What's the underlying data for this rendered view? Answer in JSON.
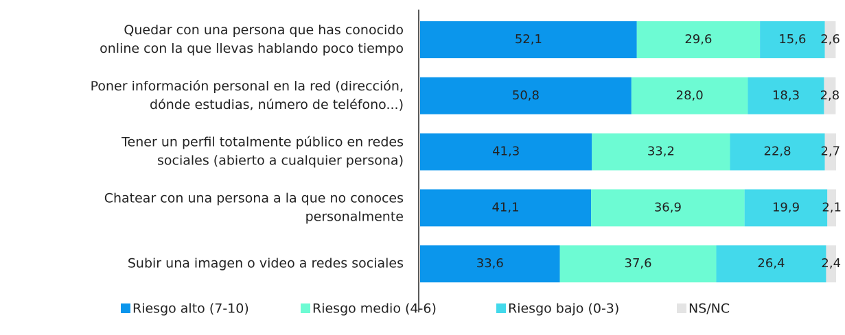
{
  "chart_data": {
    "type": "stacked-barh",
    "categories": [
      [
        "Quedar con una persona que has conocido",
        "online con la que llevas hablando poco tiempo"
      ],
      [
        "Poner información personal en la red (dirección,",
        "dónde estudias, número de teléfono...)"
      ],
      [
        "Tener un perfil totalmente público en redes",
        "sociales (abierto a cualquier persona)"
      ],
      [
        "Chatear con una persona a la que no conoces",
        "personalmente"
      ],
      [
        "Subir una imagen o video a redes sociales"
      ]
    ],
    "series": [
      {
        "name": "Riesgo alto (7-10)",
        "color": "#0b96ec",
        "values": [
          52.1,
          50.8,
          41.3,
          41.1,
          33.6
        ],
        "value_labels": [
          "52,1",
          "50,8",
          "41,3",
          "41,1",
          "33,6"
        ]
      },
      {
        "name": "Riesgo medio (4-6)",
        "color": "#6dfbd3",
        "values": [
          29.6,
          28.0,
          33.2,
          36.9,
          37.6
        ],
        "value_labels": [
          "29,6",
          "28,0",
          "33,2",
          "36,9",
          "37,6"
        ]
      },
      {
        "name": "Riesgo bajo (0-3)",
        "color": "#43d9eb",
        "values": [
          15.6,
          18.3,
          22.8,
          19.9,
          26.4
        ],
        "value_labels": [
          "15,6",
          "18,3",
          "22,8",
          "19,9",
          "26,4"
        ]
      },
      {
        "name": "NS/NC",
        "color": "#e4e4e4",
        "values": [
          2.6,
          2.8,
          2.7,
          2.1,
          2.4
        ],
        "value_labels": [
          "2,6",
          "2,8",
          "2,7",
          "2,1",
          "2,4"
        ]
      }
    ],
    "xlim": [
      0,
      100
    ],
    "legend": "bottom"
  }
}
